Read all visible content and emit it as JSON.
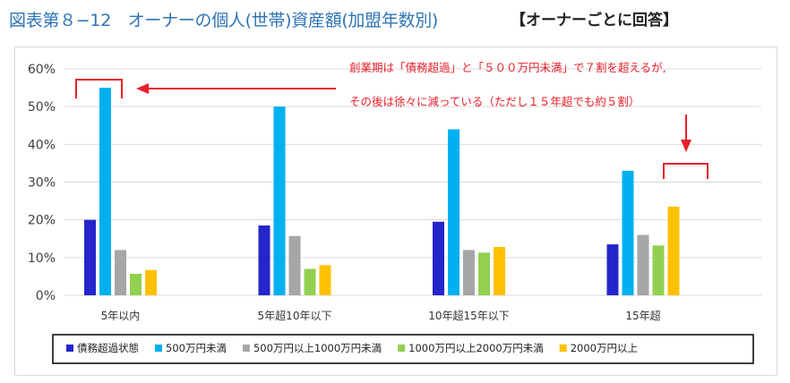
{
  "figure": {
    "title": "図表第８−12　オーナーの個人(世帯)資産額(加盟年数別)",
    "subtitle": "【オーナーごとに回答】"
  },
  "annotation": {
    "line1": "創業期は「債務超過」と「５００万円未満」で７割を超えるが,",
    "line2": "その後は徐々に減っている（ただし１５年超でも約５割）",
    "color": "#e8202a"
  },
  "chart_data": {
    "type": "bar",
    "title": "",
    "xlabel": "",
    "ylabel": "",
    "ylim": [
      0,
      60
    ],
    "yticks": [
      0,
      10,
      20,
      30,
      40,
      50,
      60
    ],
    "ytick_labels": [
      "0%",
      "10%",
      "20%",
      "30%",
      "40%",
      "50%",
      "60%"
    ],
    "grid": true,
    "legend_position": "bottom",
    "categories": [
      "5年以内",
      "5年超10年以下",
      "10年超15年以下",
      "15年超"
    ],
    "series": [
      {
        "name": "債務超過状態",
        "color": "#2525cc",
        "values": [
          20,
          18.5,
          19.5,
          13.5
        ]
      },
      {
        "name": "500万円未満",
        "color": "#00b0f0",
        "values": [
          55,
          50,
          44,
          33
        ]
      },
      {
        "name": "500万円以上1000万円未満",
        "color": "#a6a6a6",
        "values": [
          12,
          15.7,
          12,
          16
        ]
      },
      {
        "name": "1000万円以上2000万円未満",
        "color": "#92d050",
        "values": [
          5.7,
          7,
          11.3,
          13.2
        ]
      },
      {
        "name": "2000万円以上",
        "color": "#ffc000",
        "values": [
          6.7,
          8,
          12.8,
          23.5
        ]
      }
    ]
  }
}
